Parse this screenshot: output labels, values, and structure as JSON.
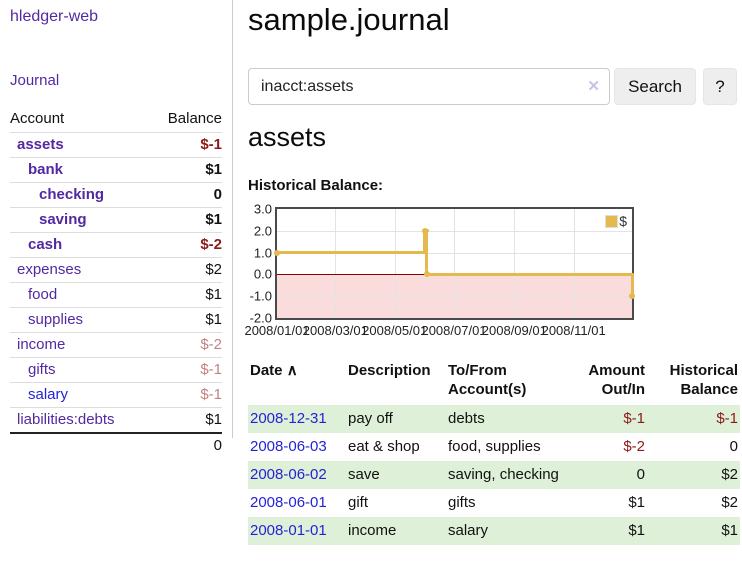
{
  "sidebar": {
    "brand": "hledger-web",
    "journal_link": "Journal",
    "accounts_table": {
      "headers": {
        "account": "Account",
        "balance": "Balance"
      },
      "rows": [
        {
          "name": "assets",
          "balance": "$-1",
          "level": 0,
          "bold": true,
          "negative": true
        },
        {
          "name": "bank",
          "balance": "$1",
          "level": 1,
          "bold": true
        },
        {
          "name": "checking",
          "balance": "0",
          "level": 2,
          "bold": true
        },
        {
          "name": "saving",
          "balance": "$1",
          "level": 2,
          "bold": true
        },
        {
          "name": "cash",
          "balance": "$-2",
          "level": 1,
          "bold": true,
          "negative": true
        },
        {
          "name": "expenses",
          "balance": "$2",
          "level": 0
        },
        {
          "name": "food",
          "balance": "$1",
          "level": 1
        },
        {
          "name": "supplies",
          "balance": "$1",
          "level": 1
        },
        {
          "name": "income",
          "balance": "$-2",
          "level": 0,
          "negative_muted": true
        },
        {
          "name": "gifts",
          "balance": "$-1",
          "level": 1,
          "negative_muted": true
        },
        {
          "name": "salary",
          "balance": "$-1",
          "level": 1,
          "negative_muted": true,
          "unvisited": true
        },
        {
          "name": "liabilities:debts",
          "balance": "$1",
          "level": 0
        }
      ],
      "total": "0"
    }
  },
  "header": {
    "title": "sample.journal"
  },
  "search": {
    "value": "inacct:assets",
    "clear_icon": "✕",
    "button_label": "Search",
    "help_label": "?"
  },
  "account_page": {
    "heading": "assets",
    "chart_label": "Historical Balance:"
  },
  "chart_data": {
    "type": "line",
    "title": "Historical Balance:",
    "series": [
      {
        "name": "$",
        "color": "#e4b94e",
        "step": true,
        "marker": "open-circle",
        "points": [
          {
            "date": "2008-01-01",
            "value": 1
          },
          {
            "date": "2008-06-01",
            "value": 2
          },
          {
            "date": "2008-06-03",
            "value": 0
          },
          {
            "date": "2008-12-31",
            "value": -1
          }
        ]
      }
    ],
    "ylim": [
      -2,
      3
    ],
    "y_tick_labels": [
      "3.0",
      "2.0",
      "1.0",
      "0.0",
      "-1.0",
      "-2.0"
    ],
    "x_ticks": [
      "2008/01/01",
      "2008/03/01",
      "2008/05/01",
      "2008/07/01",
      "2008/09/01",
      "2008/11/01"
    ],
    "x_range": [
      "2008-01-01",
      "2008-12-31"
    ],
    "grid": true,
    "legend": {
      "label": "$",
      "swatch_color": "#e4b94e",
      "position": "top-right"
    },
    "zero_line_color": "#8b0000",
    "negative_region_color": "#fadcdc"
  },
  "transactions": {
    "headers": {
      "date": "Date",
      "sort_caret": "∧",
      "description": "Description",
      "accounts": [
        "To/From",
        "Account(s)"
      ],
      "amount": [
        "Amount",
        "Out/In"
      ],
      "balance": [
        "Historical",
        "Balance"
      ]
    },
    "rows": [
      {
        "date": "2008-12-31",
        "description": "pay off",
        "accounts": "debts",
        "amount": "$-1",
        "balance": "$-1",
        "amount_neg": true,
        "balance_neg": true,
        "shaded": true
      },
      {
        "date": "2008-06-03",
        "description": "eat & shop",
        "accounts": "food, supplies",
        "amount": "$-2",
        "balance": "0",
        "amount_neg": true
      },
      {
        "date": "2008-06-02",
        "description": "save",
        "accounts": "saving, checking",
        "amount": "0",
        "balance": "$2",
        "shaded": true
      },
      {
        "date": "2008-06-01",
        "description": "gift",
        "accounts": "gifts",
        "amount": "$1",
        "balance": "$2"
      },
      {
        "date": "2008-01-01",
        "description": "income",
        "accounts": "salary",
        "amount": "$1",
        "balance": "$1",
        "shaded": true
      }
    ]
  }
}
